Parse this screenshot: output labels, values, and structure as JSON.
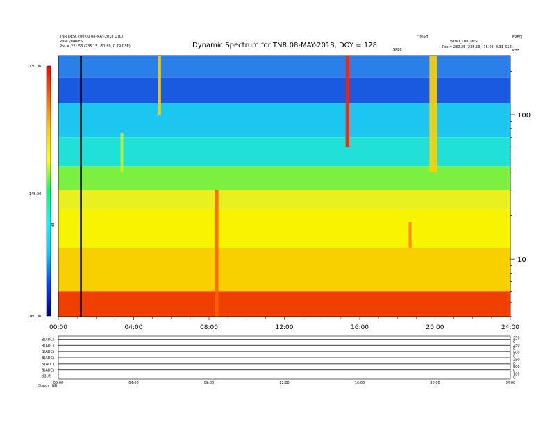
{
  "header": {
    "left_line1": "TNR DESC (00:00 08-MAY-2018 UTC)",
    "left_line2": "WIND/WAVES",
    "left_line3": "Pos = 221.53 (235.15, -51.89, 0.79 GSE)",
    "right_line1": "FINISH",
    "right_line2": "WIND_TNR_DESC",
    "right_line3": "Pos = 230.25 (235.53, -75.02, 0.31 GSE)",
    "right_small": "FREQ",
    "right_small_b": "kHz",
    "center_small": "SPEC"
  },
  "chart_data": {
    "type": "heatmap",
    "title": "Dynamic Spectrum for TNR 08-MAY-2018, DOY = 128",
    "x_axis": {
      "range_hours": [
        0,
        24
      ],
      "tick_labels": [
        "00:00",
        "04:00",
        "08:00",
        "12:00",
        "16:00",
        "20:00",
        "24:00"
      ]
    },
    "y_axis_right": {
      "scale": "log",
      "range_khz": [
        4,
        256
      ],
      "tick_labels": [
        "100",
        "10"
      ],
      "tick_values": [
        100,
        10
      ]
    },
    "colorbar": {
      "label": "dB",
      "range": [
        -160,
        -130
      ],
      "tick_labels": [
        "-130.00",
        "-145.00",
        "-160.00"
      ],
      "colormap": [
        "#00008b",
        "#0044ff",
        "#00ccff",
        "#00ffff",
        "#00ff66",
        "#ffff00",
        "#ffcc00",
        "#ff6600",
        "#ff0000"
      ]
    },
    "bands": [
      {
        "f_lo": 180,
        "f_hi": 256,
        "color": "#2a7fe8"
      },
      {
        "f_lo": 120,
        "f_hi": 180,
        "color": "#1a5ae0"
      },
      {
        "f_lo": 70,
        "f_hi": 120,
        "color": "#1cc6f0"
      },
      {
        "f_lo": 44,
        "f_hi": 70,
        "color": "#20e0d8"
      },
      {
        "f_lo": 30,
        "f_hi": 44,
        "color": "#7cf040"
      },
      {
        "f_lo": 22,
        "f_hi": 30,
        "color": "#e8f020"
      },
      {
        "f_lo": 12,
        "f_hi": 22,
        "color": "#f8f400"
      },
      {
        "f_lo": 6,
        "f_hi": 12,
        "color": "#f8d000"
      },
      {
        "f_lo": 4,
        "f_hi": 6,
        "color": "#f04000"
      }
    ],
    "events": [
      {
        "t_start": 15.25,
        "t_end": 15.45,
        "f_lo": 60,
        "f_hi": 256,
        "color": "#ff2000"
      },
      {
        "t_start": 8.3,
        "t_end": 8.5,
        "f_lo": 4,
        "f_hi": 30,
        "color": "#ff6000"
      },
      {
        "t_start": 5.3,
        "t_end": 5.45,
        "f_lo": 100,
        "f_hi": 256,
        "color": "#ffd000"
      },
      {
        "t_start": 19.7,
        "t_end": 20.1,
        "f_lo": 40,
        "f_hi": 256,
        "color": "#ffd000"
      },
      {
        "t_start": 18.6,
        "t_end": 18.75,
        "f_lo": 12,
        "f_hi": 18,
        "color": "#ff8000"
      },
      {
        "t_start": 3.3,
        "t_end": 3.45,
        "f_lo": 40,
        "f_hi": 75,
        "color": "#c8f020"
      }
    ],
    "data_gaps_hours": [
      1.2
    ]
  },
  "panels": {
    "left_labels": [
      "B(ADC)",
      "B(ADC)",
      "B(ADC)",
      "B(ADC)",
      "N(ADC)",
      "B(ADC)",
      "dB(/f)"
    ],
    "right_labels": [
      "250",
      "0",
      "250",
      "0",
      "500",
      "0",
      "250",
      "0",
      "500",
      "0",
      "100",
      "0"
    ],
    "x_tick_labels": [
      "00:00",
      "04:00",
      "08:00",
      "12:00",
      "16:00",
      "20:00",
      "24:00"
    ],
    "footer_left": "Status",
    "footer_left_b": "NB"
  }
}
